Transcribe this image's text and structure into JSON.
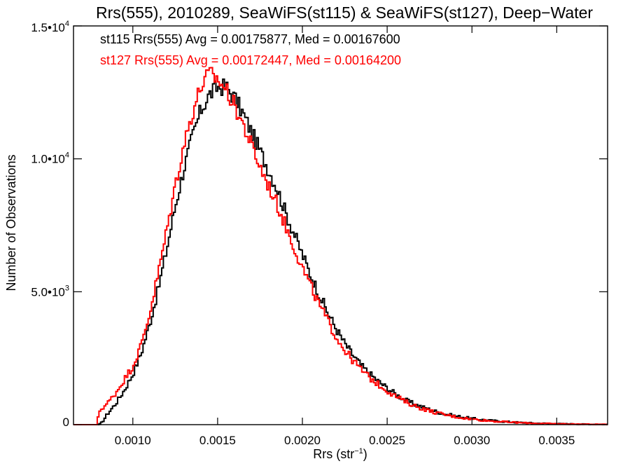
{
  "chart_data": {
    "type": "line",
    "title": "Rrs(555), 2010289, SeaWiFS(st115) & SeaWiFS(st127), Deep−Water",
    "xlabel": {
      "main": "Rrs (str",
      "sup": "−1",
      "tail": ")"
    },
    "ylabel": "Number of Observations",
    "xlim": [
      0.00065,
      0.0038
    ],
    "ylim": [
      0,
      15000
    ],
    "xticks": [
      {
        "value": 0.001,
        "label": "0.0010"
      },
      {
        "value": 0.0015,
        "label": "0.0015"
      },
      {
        "value": 0.002,
        "label": "0.0020"
      },
      {
        "value": 0.0025,
        "label": "0.0025"
      },
      {
        "value": 0.003,
        "label": "0.0030"
      },
      {
        "value": 0.0035,
        "label": "0.0035"
      }
    ],
    "yticks": [
      {
        "value": 0,
        "label": "0",
        "sup": ""
      },
      {
        "value": 5000,
        "label": "5.0•10",
        "sup": "3"
      },
      {
        "value": 10000,
        "label": "1.0•10",
        "sup": "4"
      },
      {
        "value": 15000,
        "label": "1.5•10",
        "sup": "4"
      }
    ],
    "annotations": [
      {
        "text": "st115 Rrs(555) Avg = 0.00175877, Med = 0.00167600",
        "color": "#000000"
      },
      {
        "text": "st127 Rrs(555) Avg = 0.00172447, Med = 0.00164200",
        "color": "#ff0000"
      }
    ],
    "series": [
      {
        "color": "#000000",
        "points": [
          [
            0.0008,
            0
          ],
          [
            0.00082,
            100
          ],
          [
            0.00085,
            400
          ],
          [
            0.0009,
            800
          ],
          [
            0.00095,
            1300
          ],
          [
            0.001,
            1900
          ],
          [
            0.00105,
            2700
          ],
          [
            0.0011,
            3800
          ],
          [
            0.00115,
            5100
          ],
          [
            0.0012,
            6600
          ],
          [
            0.00125,
            8200
          ],
          [
            0.0013,
            9600
          ],
          [
            0.00135,
            10800
          ],
          [
            0.0014,
            11800
          ],
          [
            0.00145,
            12400
          ],
          [
            0.0015,
            12700
          ],
          [
            0.00155,
            12700
          ],
          [
            0.0016,
            12300
          ],
          [
            0.00165,
            11700
          ],
          [
            0.0017,
            11000
          ],
          [
            0.00175,
            10300
          ],
          [
            0.0018,
            9600
          ],
          [
            0.00185,
            8900
          ],
          [
            0.0019,
            8000
          ],
          [
            0.00195,
            7200
          ],
          [
            0.002,
            6400
          ],
          [
            0.00205,
            5600
          ],
          [
            0.0021,
            4900
          ],
          [
            0.00215,
            4200
          ],
          [
            0.0022,
            3600
          ],
          [
            0.00225,
            3050
          ],
          [
            0.0023,
            2600
          ],
          [
            0.00235,
            2200
          ],
          [
            0.0024,
            1900
          ],
          [
            0.00245,
            1620
          ],
          [
            0.0025,
            1380
          ],
          [
            0.00255,
            1150
          ],
          [
            0.0026,
            950
          ],
          [
            0.00265,
            800
          ],
          [
            0.0027,
            680
          ],
          [
            0.00275,
            570
          ],
          [
            0.0028,
            470
          ],
          [
            0.00285,
            390
          ],
          [
            0.0029,
            330
          ],
          [
            0.00295,
            280
          ],
          [
            0.003,
            230
          ],
          [
            0.0031,
            160
          ],
          [
            0.0032,
            110
          ],
          [
            0.0033,
            75
          ],
          [
            0.0034,
            50
          ],
          [
            0.0035,
            35
          ],
          [
            0.0036,
            25
          ],
          [
            0.0037,
            15
          ],
          [
            0.0038,
            10
          ]
        ]
      },
      {
        "color": "#ff0000",
        "points": [
          [
            0.00079,
            0
          ],
          [
            0.0008,
            500
          ],
          [
            0.00085,
            800
          ],
          [
            0.0009,
            1200
          ],
          [
            0.00095,
            1700
          ],
          [
            0.001,
            2200
          ],
          [
            0.00105,
            3000
          ],
          [
            0.0011,
            4200
          ],
          [
            0.00115,
            5700
          ],
          [
            0.0012,
            7300
          ],
          [
            0.00125,
            9000
          ],
          [
            0.0013,
            10500
          ],
          [
            0.00135,
            11700
          ],
          [
            0.0014,
            12700
          ],
          [
            0.00145,
            13200
          ],
          [
            0.0015,
            13000
          ],
          [
            0.00155,
            12600
          ],
          [
            0.0016,
            12000
          ],
          [
            0.00165,
            11300
          ],
          [
            0.0017,
            10500
          ],
          [
            0.00175,
            9700
          ],
          [
            0.0018,
            9000
          ],
          [
            0.00185,
            8300
          ],
          [
            0.0019,
            7500
          ],
          [
            0.00195,
            6700
          ],
          [
            0.002,
            5900
          ],
          [
            0.00205,
            5200
          ],
          [
            0.0021,
            4500
          ],
          [
            0.00215,
            3900
          ],
          [
            0.0022,
            3300
          ],
          [
            0.00225,
            2800
          ],
          [
            0.0023,
            2400
          ],
          [
            0.00235,
            2050
          ],
          [
            0.0024,
            1750
          ],
          [
            0.00245,
            1500
          ],
          [
            0.0025,
            1280
          ],
          [
            0.00255,
            1070
          ],
          [
            0.0026,
            890
          ],
          [
            0.00265,
            740
          ],
          [
            0.0027,
            620
          ],
          [
            0.00275,
            520
          ],
          [
            0.0028,
            430
          ],
          [
            0.00285,
            360
          ],
          [
            0.0029,
            300
          ],
          [
            0.00295,
            250
          ],
          [
            0.003,
            210
          ],
          [
            0.0031,
            145
          ],
          [
            0.0032,
            100
          ],
          [
            0.0033,
            68
          ],
          [
            0.0034,
            45
          ],
          [
            0.0035,
            32
          ],
          [
            0.0036,
            22
          ],
          [
            0.0037,
            14
          ],
          [
            0.0038,
            9
          ]
        ]
      }
    ]
  }
}
